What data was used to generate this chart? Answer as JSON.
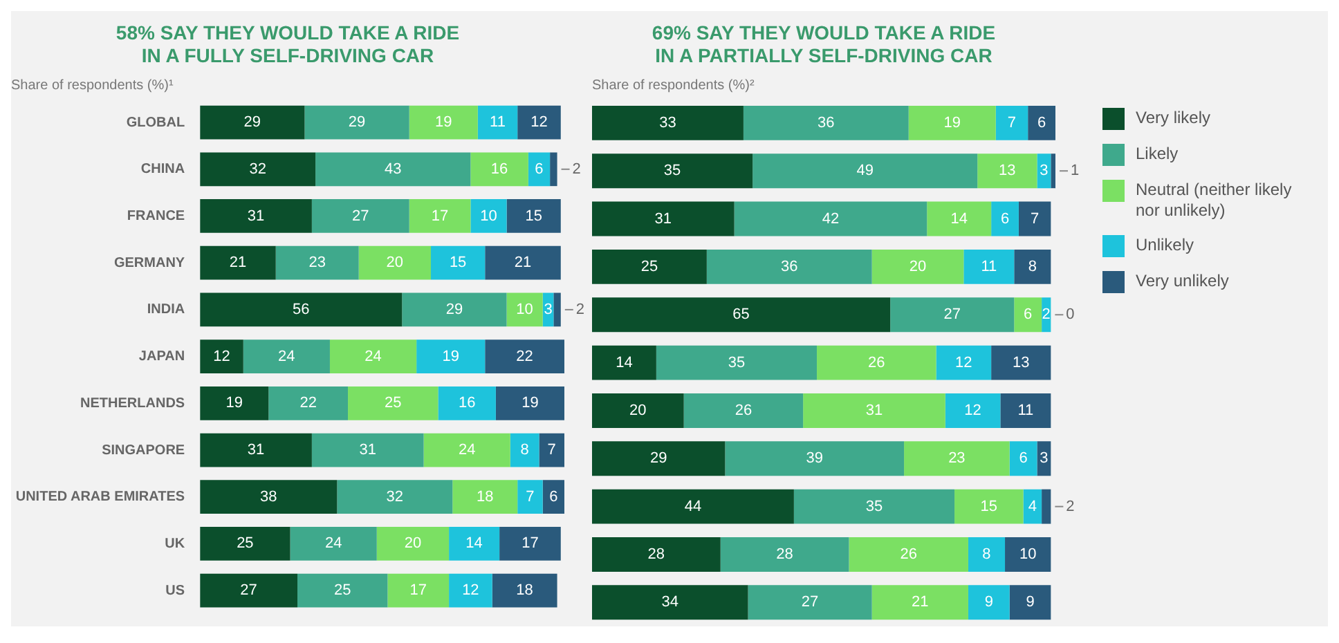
{
  "chart_data": [
    {
      "type": "bar",
      "orientation": "horizontal",
      "stacked": true,
      "title": [
        "58% SAY THEY WOULD TAKE A RIDE",
        "IN A FULLY SELF-DRIVING CAR"
      ],
      "subtitle": "Share of respondents (%)¹",
      "categories": [
        "GLOBAL",
        "CHINA",
        "FRANCE",
        "GERMANY",
        "INDIA",
        "JAPAN",
        "NETHERLANDS",
        "SINGAPORE",
        "UNITED ARAB EMIRATES",
        "UK",
        "US"
      ],
      "data_labels": true,
      "grid": false,
      "series": [
        {
          "color": "#0b4f2c",
          "values": [
            29,
            32,
            31,
            21,
            56,
            12,
            19,
            31,
            38,
            25,
            27
          ]
        },
        {
          "color": "#3fa98c",
          "values": [
            29,
            43,
            27,
            23,
            29,
            24,
            22,
            31,
            32,
            24,
            25
          ]
        },
        {
          "color": "#7be063",
          "values": [
            19,
            16,
            17,
            20,
            10,
            24,
            25,
            24,
            18,
            20,
            17
          ]
        },
        {
          "color": "#1ec3dc",
          "values": [
            11,
            6,
            10,
            15,
            3,
            19,
            16,
            8,
            7,
            14,
            12
          ]
        },
        {
          "color": "#2a5a7c",
          "values": [
            12,
            2,
            15,
            21,
            2,
            22,
            19,
            7,
            6,
            17,
            18
          ]
        }
      ]
    },
    {
      "type": "bar",
      "orientation": "horizontal",
      "stacked": true,
      "title": [
        "69% SAY THEY WOULD TAKE A RIDE",
        "IN A PARTIALLY SELF-DRIVING CAR"
      ],
      "subtitle": "Share of respondents (%)²",
      "categories": [
        null,
        null,
        null,
        null,
        null,
        null,
        null,
        null,
        null,
        null,
        null
      ],
      "data_labels": true,
      "legend": "right",
      "grid": false,
      "series": [
        {
          "name": "Very likely",
          "color": "#0b4f2c",
          "values": [
            33,
            35,
            31,
            25,
            65,
            14,
            20,
            29,
            44,
            28,
            34
          ]
        },
        {
          "name": "Likely",
          "color": "#3fa98c",
          "values": [
            36,
            49,
            42,
            36,
            27,
            35,
            26,
            39,
            35,
            28,
            27
          ]
        },
        {
          "name": "Neutral (neither likely nor unlikely)",
          "color": "#7be063",
          "values": [
            19,
            13,
            14,
            20,
            6,
            26,
            31,
            23,
            15,
            26,
            21
          ]
        },
        {
          "name": "Unlikely",
          "color": "#1ec3dc",
          "values": [
            7,
            3,
            6,
            11,
            2,
            12,
            12,
            6,
            4,
            8,
            9
          ]
        },
        {
          "name": "Very unlikely",
          "color": "#2a5a7c",
          "values": [
            6,
            1,
            7,
            8,
            0,
            13,
            11,
            3,
            2,
            10,
            9
          ]
        }
      ]
    }
  ]
}
